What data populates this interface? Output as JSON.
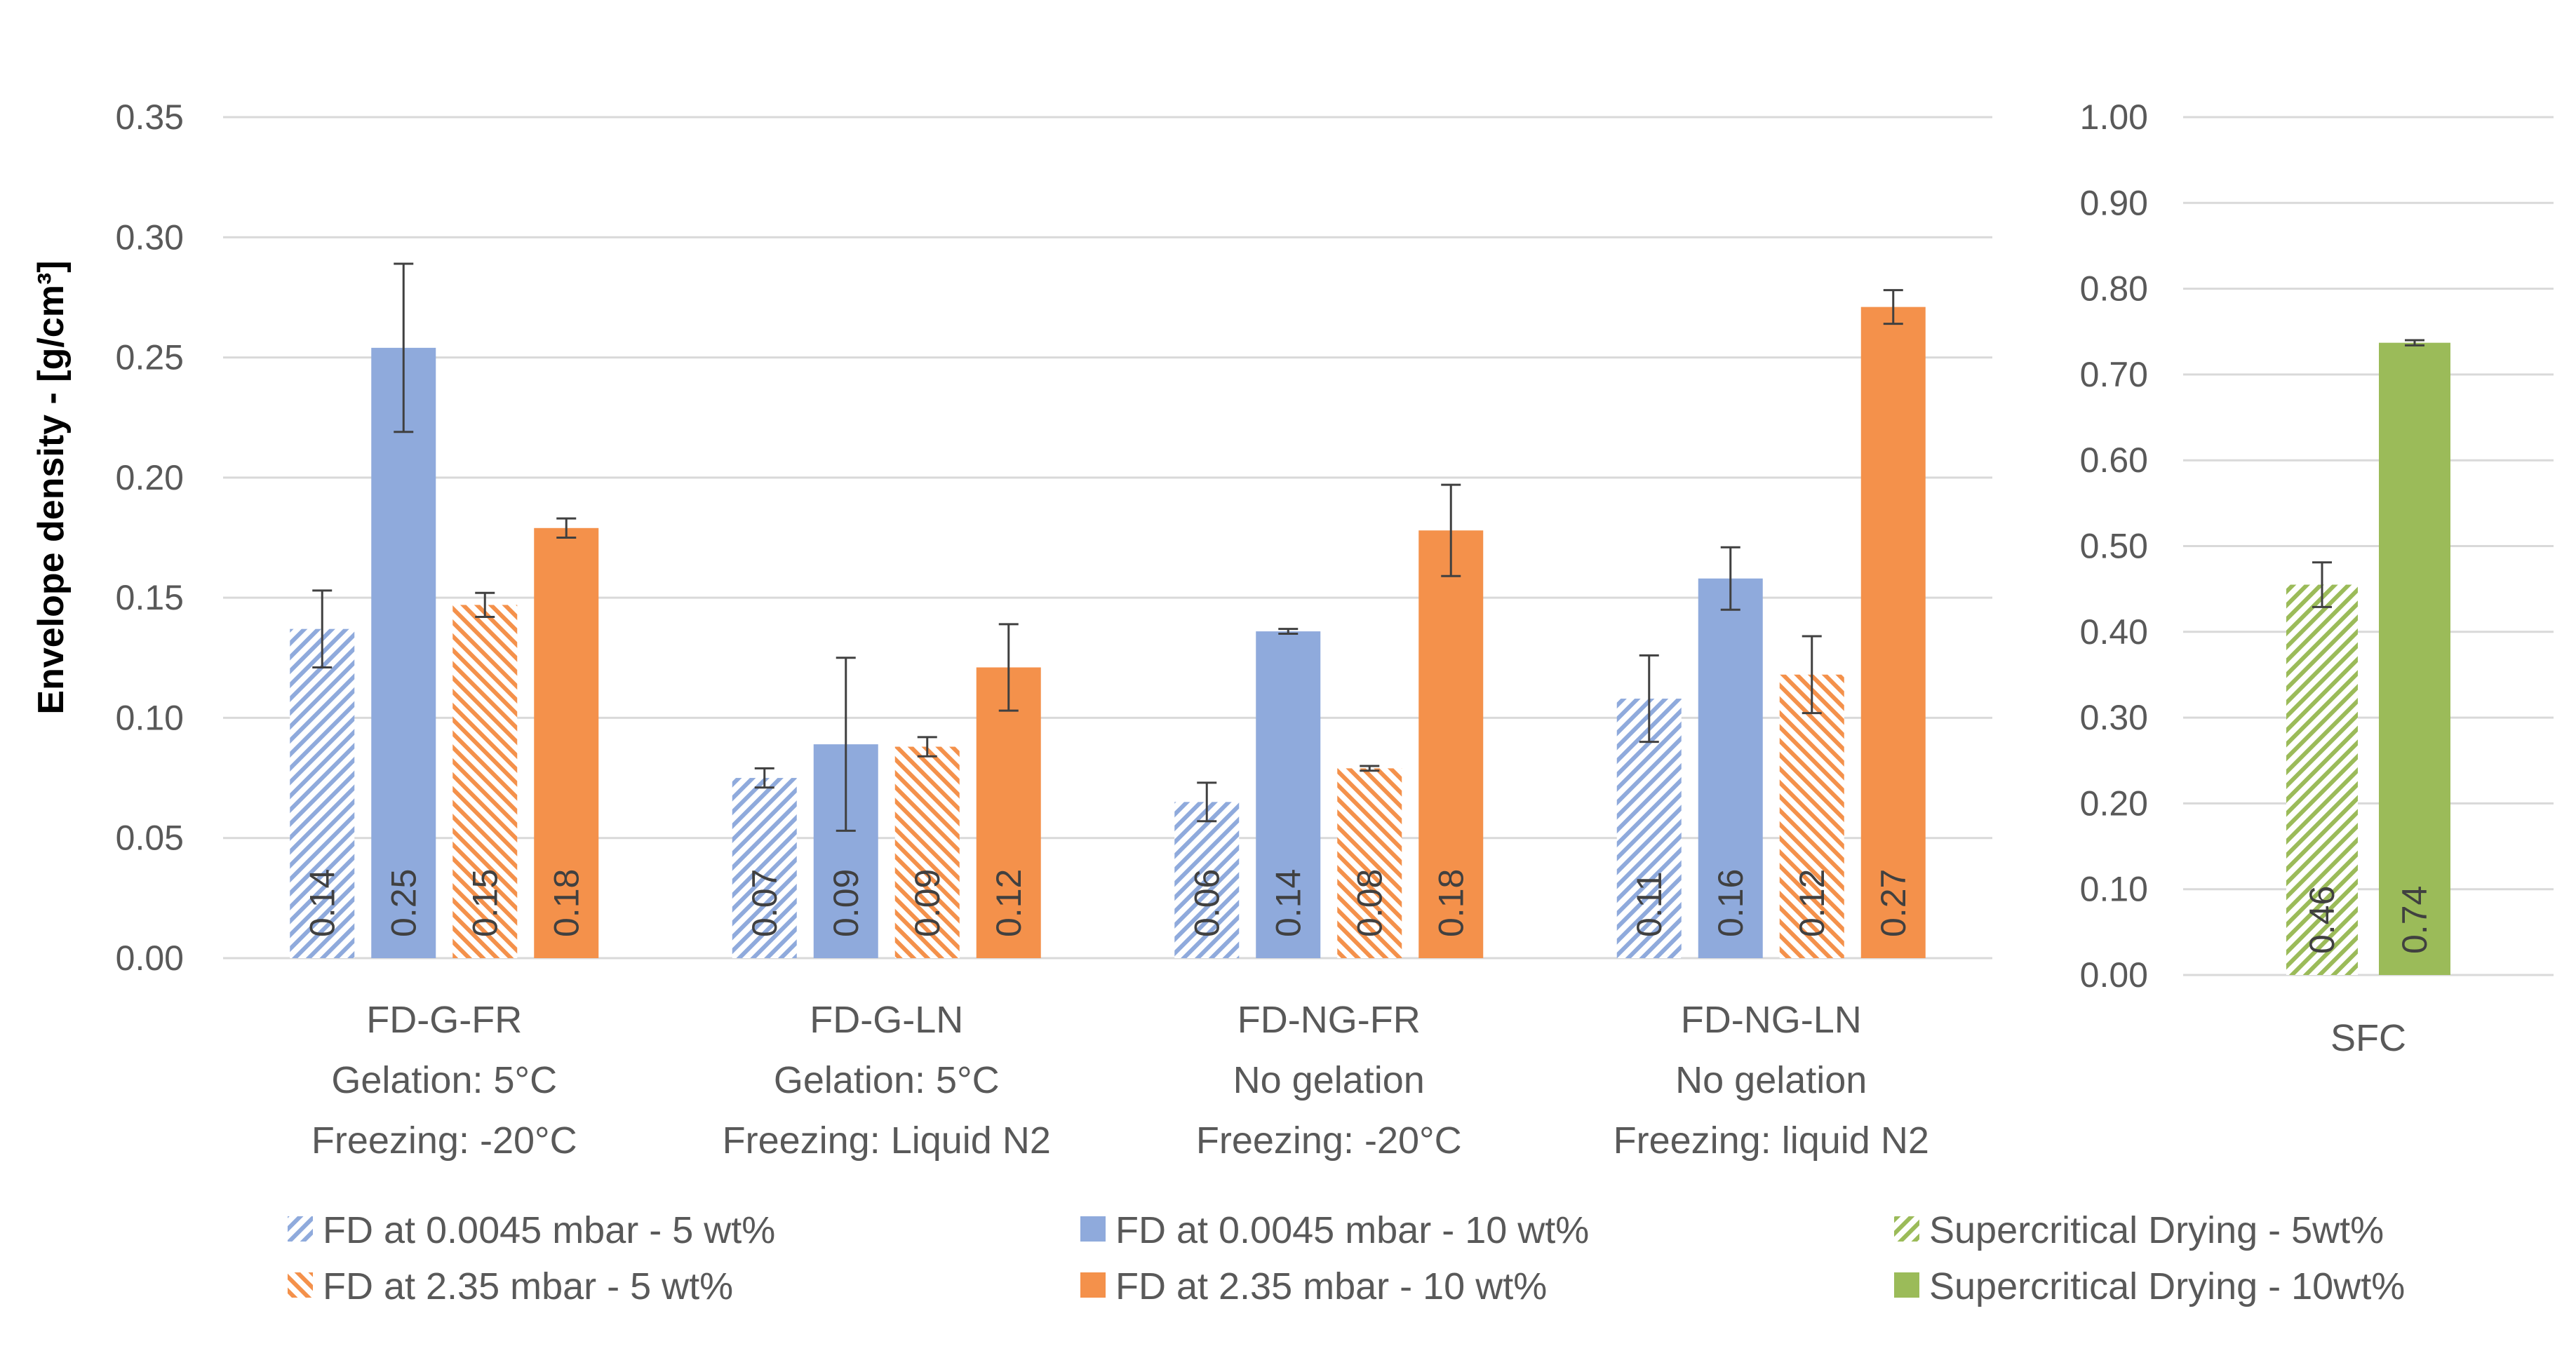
{
  "chart_data": [
    {
      "type": "bar",
      "ylabel": "Envelope density - [g/cm³]",
      "ylim": [
        0,
        0.35
      ],
      "yticks": [
        "0.00",
        "0.05",
        "0.10",
        "0.15",
        "0.20",
        "0.25",
        "0.30",
        "0.35"
      ],
      "grid": true,
      "categories": [
        {
          "lines": [
            "FD-G-FR",
            "Gelation: 5°C",
            "Freezing: -20°C"
          ]
        },
        {
          "lines": [
            "FD-G-LN",
            "Gelation: 5°C",
            "Freezing: Liquid N2"
          ]
        },
        {
          "lines": [
            "FD-NG-FR",
            "No gelation",
            "Freezing: -20°C"
          ]
        },
        {
          "lines": [
            "FD-NG-LN",
            "No gelation",
            "Freezing: liquid N2"
          ]
        }
      ],
      "series": [
        {
          "name": "FD at 0.0045 mbar - 5 wt%",
          "color": "#8faadc",
          "pattern": "hatch-right",
          "values": [
            0.137,
            0.075,
            0.065,
            0.108
          ],
          "labels": [
            "0.14",
            "0.07",
            "0.06",
            "0.11"
          ],
          "errors": [
            0.016,
            0.004,
            0.008,
            0.018
          ]
        },
        {
          "name": "FD at 0.0045 mbar - 10 wt%",
          "color": "#8faadc",
          "pattern": "solid",
          "values": [
            0.254,
            0.089,
            0.136,
            0.158
          ],
          "labels": [
            "0.25",
            "0.09",
            "0.14",
            "0.16"
          ],
          "errors": [
            0.035,
            0.036,
            0.001,
            0.013
          ]
        },
        {
          "name": "FD at 2.35 mbar - 5 wt%",
          "color": "#f4914b",
          "pattern": "hatch-left",
          "values": [
            0.147,
            0.088,
            0.079,
            0.118
          ],
          "labels": [
            "0.15",
            "0.09",
            "0.08",
            "0.12"
          ],
          "errors": [
            0.005,
            0.004,
            0.001,
            0.016
          ]
        },
        {
          "name": "FD at 2.35 mbar - 10 wt%",
          "color": "#f4914b",
          "pattern": "solid",
          "values": [
            0.179,
            0.121,
            0.178,
            0.271
          ],
          "labels": [
            "0.18",
            "0.12",
            "0.18",
            "0.27"
          ],
          "errors": [
            0.004,
            0.018,
            0.019,
            0.007
          ]
        }
      ]
    },
    {
      "type": "bar",
      "ylim": [
        0,
        1.0
      ],
      "yticks": [
        "0.00",
        "0.10",
        "0.20",
        "0.30",
        "0.40",
        "0.50",
        "0.60",
        "0.70",
        "0.80",
        "0.90",
        "1.00"
      ],
      "grid": true,
      "categories": [
        {
          "lines": [
            "SFC"
          ]
        }
      ],
      "series": [
        {
          "name": "Supercritical Drying - 5wt%",
          "color": "#9bbb59",
          "pattern": "hatch-right",
          "values": [
            0.455
          ],
          "labels": [
            "0.46"
          ],
          "errors": [
            0.026
          ]
        },
        {
          "name": "Supercritical Drying - 10wt%",
          "color": "#9bbb59",
          "pattern": "solid",
          "values": [
            0.737
          ],
          "labels": [
            "0.74"
          ],
          "errors": [
            0.003
          ]
        }
      ]
    }
  ]
}
